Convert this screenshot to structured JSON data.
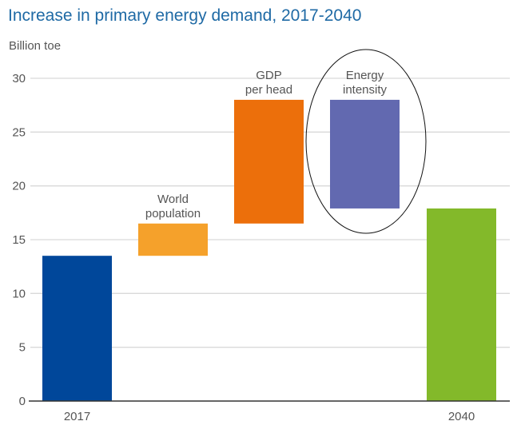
{
  "chart_data": {
    "type": "waterfall",
    "title": "Increase in primary energy demand, 2017-2040",
    "ylabel": "Billion toe",
    "xlabel": "",
    "ylim": [
      0,
      30
    ],
    "yticks": [
      0,
      5,
      10,
      15,
      20,
      25,
      30
    ],
    "grid": true,
    "bars": [
      {
        "label": "2017",
        "label_position": "bottom",
        "start": 0,
        "end": 13.5,
        "color": "#00479a"
      },
      {
        "label": "World population",
        "label_lines": [
          "World",
          "population"
        ],
        "label_position": "top",
        "start": 13.5,
        "end": 16.5,
        "color": "#f5a12b"
      },
      {
        "label": "GDP per head",
        "label_lines": [
          "GDP",
          "per head"
        ],
        "label_position": "top",
        "start": 16.5,
        "end": 28.0,
        "color": "#ec6f0b"
      },
      {
        "label": "Energy intensity",
        "label_lines": [
          "Energy",
          "intensity"
        ],
        "label_position": "top",
        "start": 28.0,
        "end": 17.9,
        "color": "#6269b0",
        "highlighted": true
      },
      {
        "label": "2040",
        "label_position": "bottom",
        "start": 0,
        "end": 17.9,
        "color": "#83b92a"
      }
    ]
  }
}
